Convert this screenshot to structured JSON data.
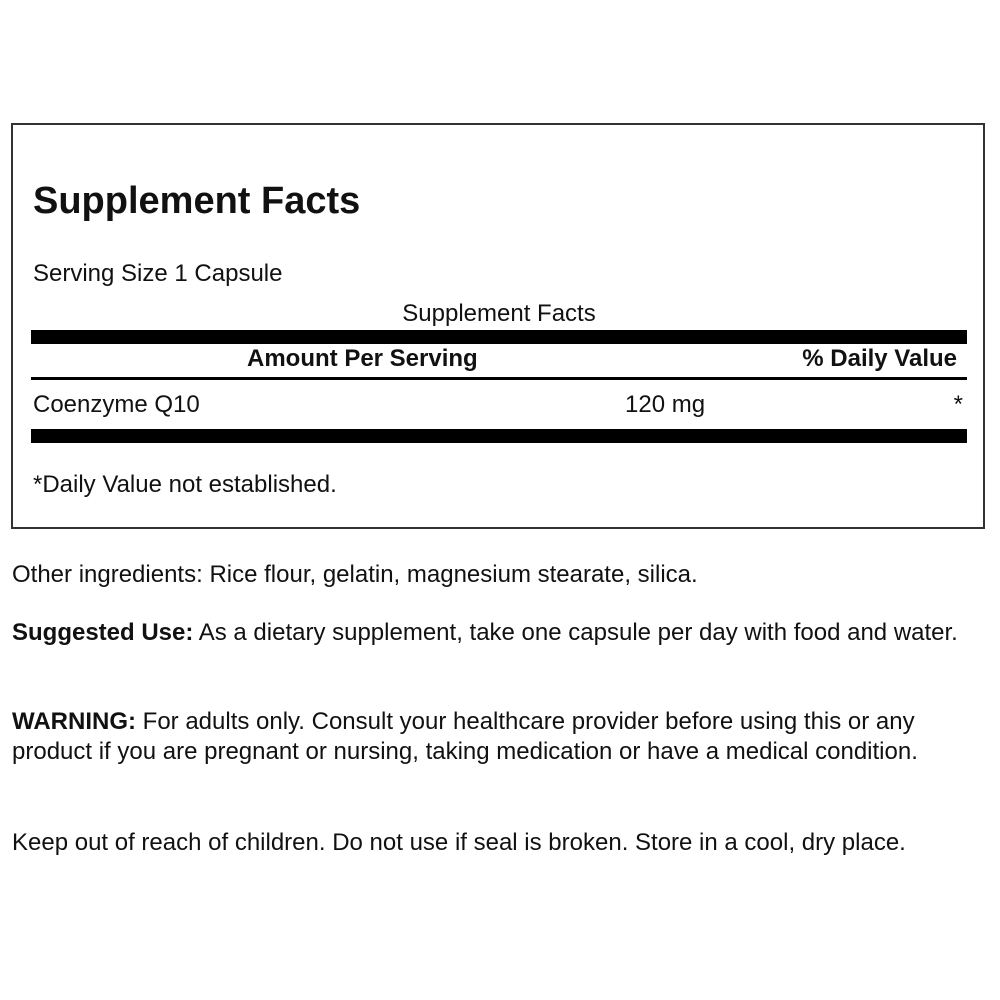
{
  "facts": {
    "title": "Supplement Facts",
    "serving_size": "Serving Size 1 Capsule",
    "subtitle": "Supplement Facts",
    "col_amount": "Amount Per Serving",
    "col_dv": "% Daily Value",
    "rows": [
      {
        "name": "Coenzyme Q10",
        "amount": "120 mg",
        "dv": "*"
      }
    ],
    "footnote": "*Daily Value not established."
  },
  "other_ingredients": "Other ingredients: Rice flour, gelatin, magnesium stearate, silica.",
  "suggested_use": {
    "label": "Suggested Use:",
    "text": " As a dietary supplement, take one capsule per day with food and water."
  },
  "warning": {
    "label": "WARNING:",
    "text": " For adults only. Consult your healthcare provider before using this or any product if you are pregnant or nursing, taking medication or have a medical condition."
  },
  "storage": "Keep out of reach of children. Do not use if seal is broken. Store in a cool, dry place."
}
